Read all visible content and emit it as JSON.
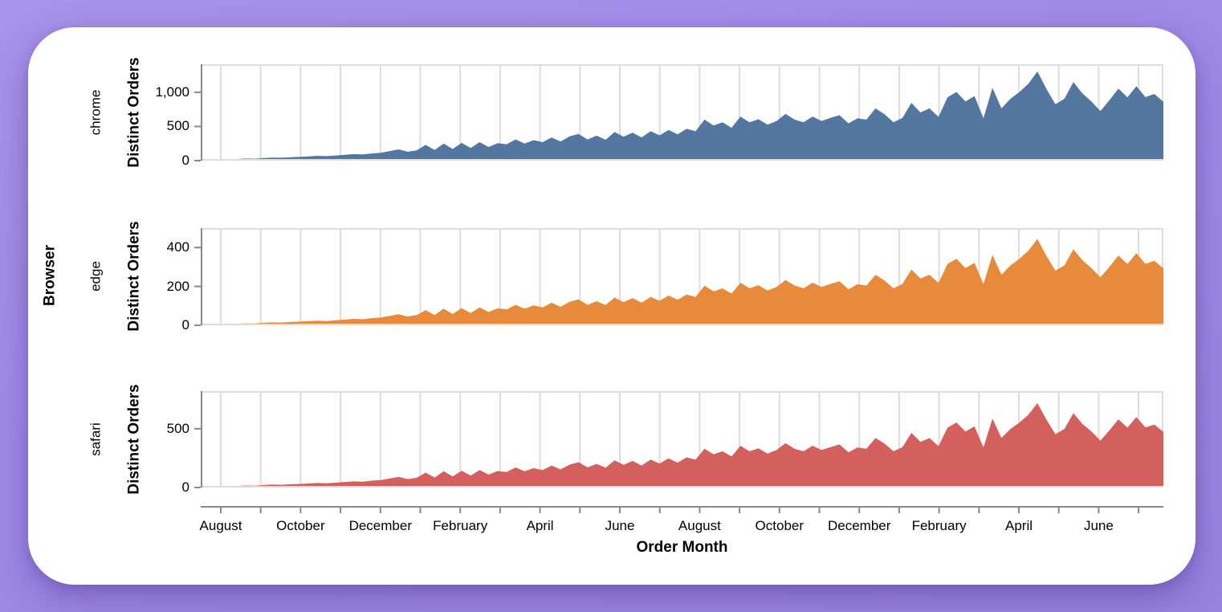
{
  "window": {
    "background_top_color": "#a892ea",
    "background_bottom_color": "#9a83df",
    "card_color": "#ffffff"
  },
  "chart_data": {
    "type": "area",
    "title": "",
    "facet_title": "Browser",
    "x_title": "Order Month",
    "y_title": "Distinct Orders",
    "legend": "none",
    "grid": "vertical-monthly",
    "grid_color": "#dddddd",
    "axis_color": "#888888",
    "n_month_gridlines": 24,
    "x_tick_labels": [
      "August",
      "October",
      "December",
      "February",
      "April",
      "June",
      "August",
      "October",
      "December",
      "February",
      "April",
      "June"
    ],
    "x_resolution": "weekly points spanning late July (year 1) to late July (year 3)",
    "facets": [
      {
        "name": "chrome",
        "color": "#54779f",
        "y_domain": [
          0,
          1410
        ],
        "y_ticks": [
          {
            "value": 0,
            "label": "0"
          },
          {
            "value": 500,
            "label": "500"
          },
          {
            "value": 1000,
            "label": "1,000"
          }
        ],
        "values": [
          5,
          8,
          12,
          18,
          24,
          30,
          28,
          38,
          45,
          42,
          50,
          55,
          62,
          70,
          66,
          75,
          85,
          95,
          90,
          105,
          115,
          140,
          165,
          130,
          150,
          230,
          155,
          250,
          170,
          260,
          185,
          270,
          200,
          255,
          240,
          310,
          250,
          300,
          270,
          340,
          280,
          355,
          390,
          310,
          365,
          305,
          420,
          350,
          410,
          340,
          430,
          370,
          450,
          385,
          465,
          430,
          600,
          515,
          560,
          480,
          645,
          560,
          605,
          525,
          580,
          685,
          600,
          560,
          645,
          580,
          625,
          665,
          545,
          620,
          600,
          765,
          680,
          560,
          625,
          845,
          705,
          765,
          640,
          925,
          1005,
          865,
          945,
          620,
          1065,
          765,
          905,
          1005,
          1125,
          1305,
          1050,
          825,
          905,
          1150,
          985,
          865,
          725,
          885,
          1055,
          925,
          1090,
          930,
          975,
          860
        ]
      },
      {
        "name": "edge",
        "color": "#e78a3b",
        "y_domain": [
          0,
          500
        ],
        "y_ticks": [
          {
            "value": 0,
            "label": "0"
          },
          {
            "value": 200,
            "label": "200"
          },
          {
            "value": 400,
            "label": "400"
          }
        ],
        "values": [
          2,
          3,
          4,
          6,
          8,
          10,
          9,
          13,
          15,
          14,
          17,
          19,
          21,
          24,
          22,
          26,
          29,
          33,
          31,
          36,
          40,
          48,
          57,
          45,
          52,
          78,
          53,
          85,
          58,
          88,
          63,
          92,
          68,
          87,
          82,
          105,
          85,
          102,
          92,
          116,
          95,
          121,
          133,
          105,
          124,
          104,
          143,
          119,
          140,
          116,
          146,
          126,
          153,
          131,
          158,
          146,
          204,
          175,
          190,
          163,
          219,
          190,
          206,
          179,
          197,
          233,
          204,
          190,
          219,
          197,
          213,
          226,
          185,
          211,
          204,
          260,
          231,
          190,
          213,
          287,
          240,
          260,
          218,
          315,
          342,
          294,
          321,
          211,
          362,
          260,
          308,
          342,
          383,
          444,
          357,
          281,
          308,
          391,
          335,
          294,
          247,
          301,
          359,
          315,
          371,
          316,
          332,
          293
        ]
      },
      {
        "name": "safari",
        "color": "#d4605e",
        "y_domain": [
          0,
          820
        ],
        "y_ticks": [
          {
            "value": 0,
            "label": "0"
          },
          {
            "value": 500,
            "label": "500"
          }
        ],
        "values": [
          3,
          4,
          7,
          10,
          13,
          17,
          15,
          21,
          25,
          23,
          28,
          30,
          34,
          39,
          36,
          41,
          47,
          52,
          50,
          58,
          63,
          77,
          91,
          72,
          83,
          127,
          85,
          138,
          94,
          143,
          102,
          149,
          110,
          140,
          132,
          171,
          138,
          165,
          149,
          187,
          154,
          195,
          215,
          171,
          201,
          168,
          231,
          193,
          226,
          187,
          237,
          204,
          248,
          212,
          256,
          237,
          330,
          283,
          308,
          264,
          355,
          308,
          333,
          289,
          319,
          377,
          330,
          308,
          355,
          319,
          344,
          366,
          300,
          341,
          330,
          421,
          374,
          308,
          344,
          465,
          388,
          421,
          352,
          509,
          553,
          476,
          520,
          341,
          586,
          421,
          498,
          553,
          619,
          718,
          578,
          454,
          498,
          633,
          542,
          476,
          399,
          487,
          580,
          509,
          600,
          512,
          536,
          473
        ]
      }
    ]
  }
}
